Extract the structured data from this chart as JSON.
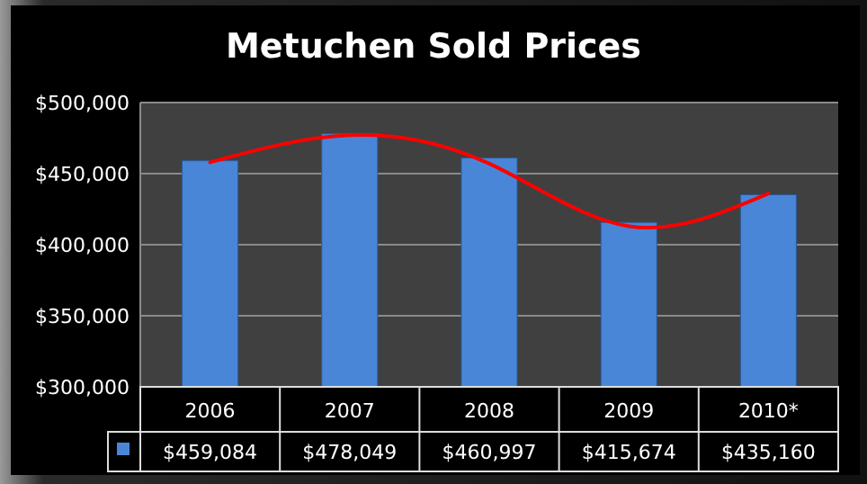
{
  "chart_data": {
    "type": "bar",
    "title": "Metuchen Sold Prices",
    "categories": [
      "2006",
      "2007",
      "2008",
      "2009",
      "2010*"
    ],
    "series": [
      {
        "color": "#4a86d8",
        "values": [
          459084,
          478049,
          460997,
          415674,
          435160
        ],
        "value_labels": [
          "$459,084",
          "$478,049",
          "$460,997",
          "$415,674",
          "$435,160"
        ]
      },
      {
        "type": "line",
        "color": "#ff0000",
        "values": [
          458000,
          477000,
          457000,
          413000,
          436000
        ]
      }
    ],
    "ylim": [
      300000,
      500000
    ],
    "yticks": [
      {
        "value": 300000,
        "label": "$300,000"
      },
      {
        "value": 350000,
        "label": "$350,000"
      },
      {
        "value": 400000,
        "label": "$400,000"
      },
      {
        "value": 450000,
        "label": "$450,000"
      },
      {
        "value": 500000,
        "label": "$500,000"
      }
    ],
    "grid": "y"
  }
}
